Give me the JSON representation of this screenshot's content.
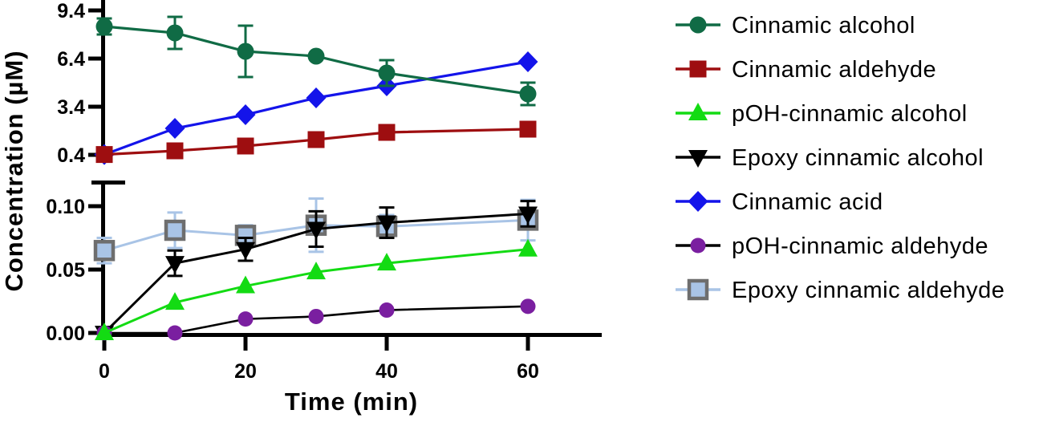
{
  "chart_data": {
    "type": "line",
    "title": "",
    "xlabel": "Time (min)",
    "ylabel": "Concentration (µM)",
    "x": [
      0,
      10,
      20,
      30,
      40,
      60
    ],
    "x_ticks": [
      0,
      20,
      40,
      60
    ],
    "x_tick_labels": [
      "0",
      "20",
      "40",
      "60"
    ],
    "xlim": [
      0,
      70
    ],
    "grid": false,
    "legend_position": "right",
    "panels": {
      "top": {
        "ylim": [
          0.4,
          10.1
        ],
        "y_ticks": [
          0.4,
          3.4,
          6.4,
          9.4
        ],
        "y_tick_labels": [
          "0.4",
          "3.4",
          "6.4",
          "9.4"
        ]
      },
      "bottom": {
        "ylim": [
          0.0,
          0.119
        ],
        "y_ticks": [
          0.0,
          0.05,
          0.1
        ],
        "y_tick_labels": [
          "0.00",
          "0.05",
          "0.10"
        ]
      }
    },
    "series": [
      {
        "name": "Cinnamic alcohol",
        "panel": "top",
        "marker": "circle",
        "color": "#106B45",
        "values": [
          8.4,
          8.0,
          6.85,
          6.55,
          5.5,
          4.2
        ],
        "errors": [
          0.5,
          1.0,
          1.6,
          0,
          0.8,
          0.7
        ],
        "z": 4
      },
      {
        "name": "Cinnamic aldehyde",
        "panel": "top",
        "marker": "square",
        "color": "#9E0E10",
        "values": [
          0.42,
          0.65,
          0.95,
          1.35,
          1.8,
          2.0
        ],
        "errors": null,
        "z": 3
      },
      {
        "name": "pOH-cinnamic alcohol",
        "panel": "bottom",
        "marker": "triangle-up",
        "color": "#13DB13",
        "values": [
          0.0,
          0.024,
          0.037,
          0.048,
          0.055,
          0.066
        ],
        "errors": null,
        "z": 7
      },
      {
        "name": "Epoxy cinnamic alcohol",
        "panel": "bottom",
        "marker": "triangle-down",
        "color": "#000000",
        "values": [
          0.0,
          0.055,
          0.066,
          0.082,
          0.087,
          0.094
        ],
        "errors": [
          0,
          0.01,
          0.009,
          0.014,
          0.012,
          0.01
        ],
        "z": 5
      },
      {
        "name": "Cinnamic acid",
        "panel": "top",
        "marker": "diamond",
        "color": "#1414EA",
        "values": [
          0.42,
          2.05,
          2.9,
          3.95,
          4.7,
          6.2
        ],
        "errors": null,
        "z": 2
      },
      {
        "name": "pOH-cinnamic aldehyde",
        "panel": "bottom",
        "marker": "circle-small",
        "color": "#7A1FA0",
        "line_color": "#000000",
        "values": [
          0.0,
          0.0,
          0.011,
          0.013,
          0.018,
          0.021
        ],
        "errors": null,
        "z": 6
      },
      {
        "name": "Epoxy cinnamic aldehyde",
        "panel": "bottom",
        "marker": "square-outlined",
        "color": "#A9C4E6",
        "marker_border": "#6E6E6E",
        "line_color": "#A9C4E6",
        "values": [
          0.065,
          0.081,
          0.077,
          0.085,
          0.084,
          0.089
        ],
        "errors": [
          0.01,
          0.014,
          0.008,
          0.021,
          0.009,
          0.016
        ],
        "z": 1
      }
    ]
  }
}
